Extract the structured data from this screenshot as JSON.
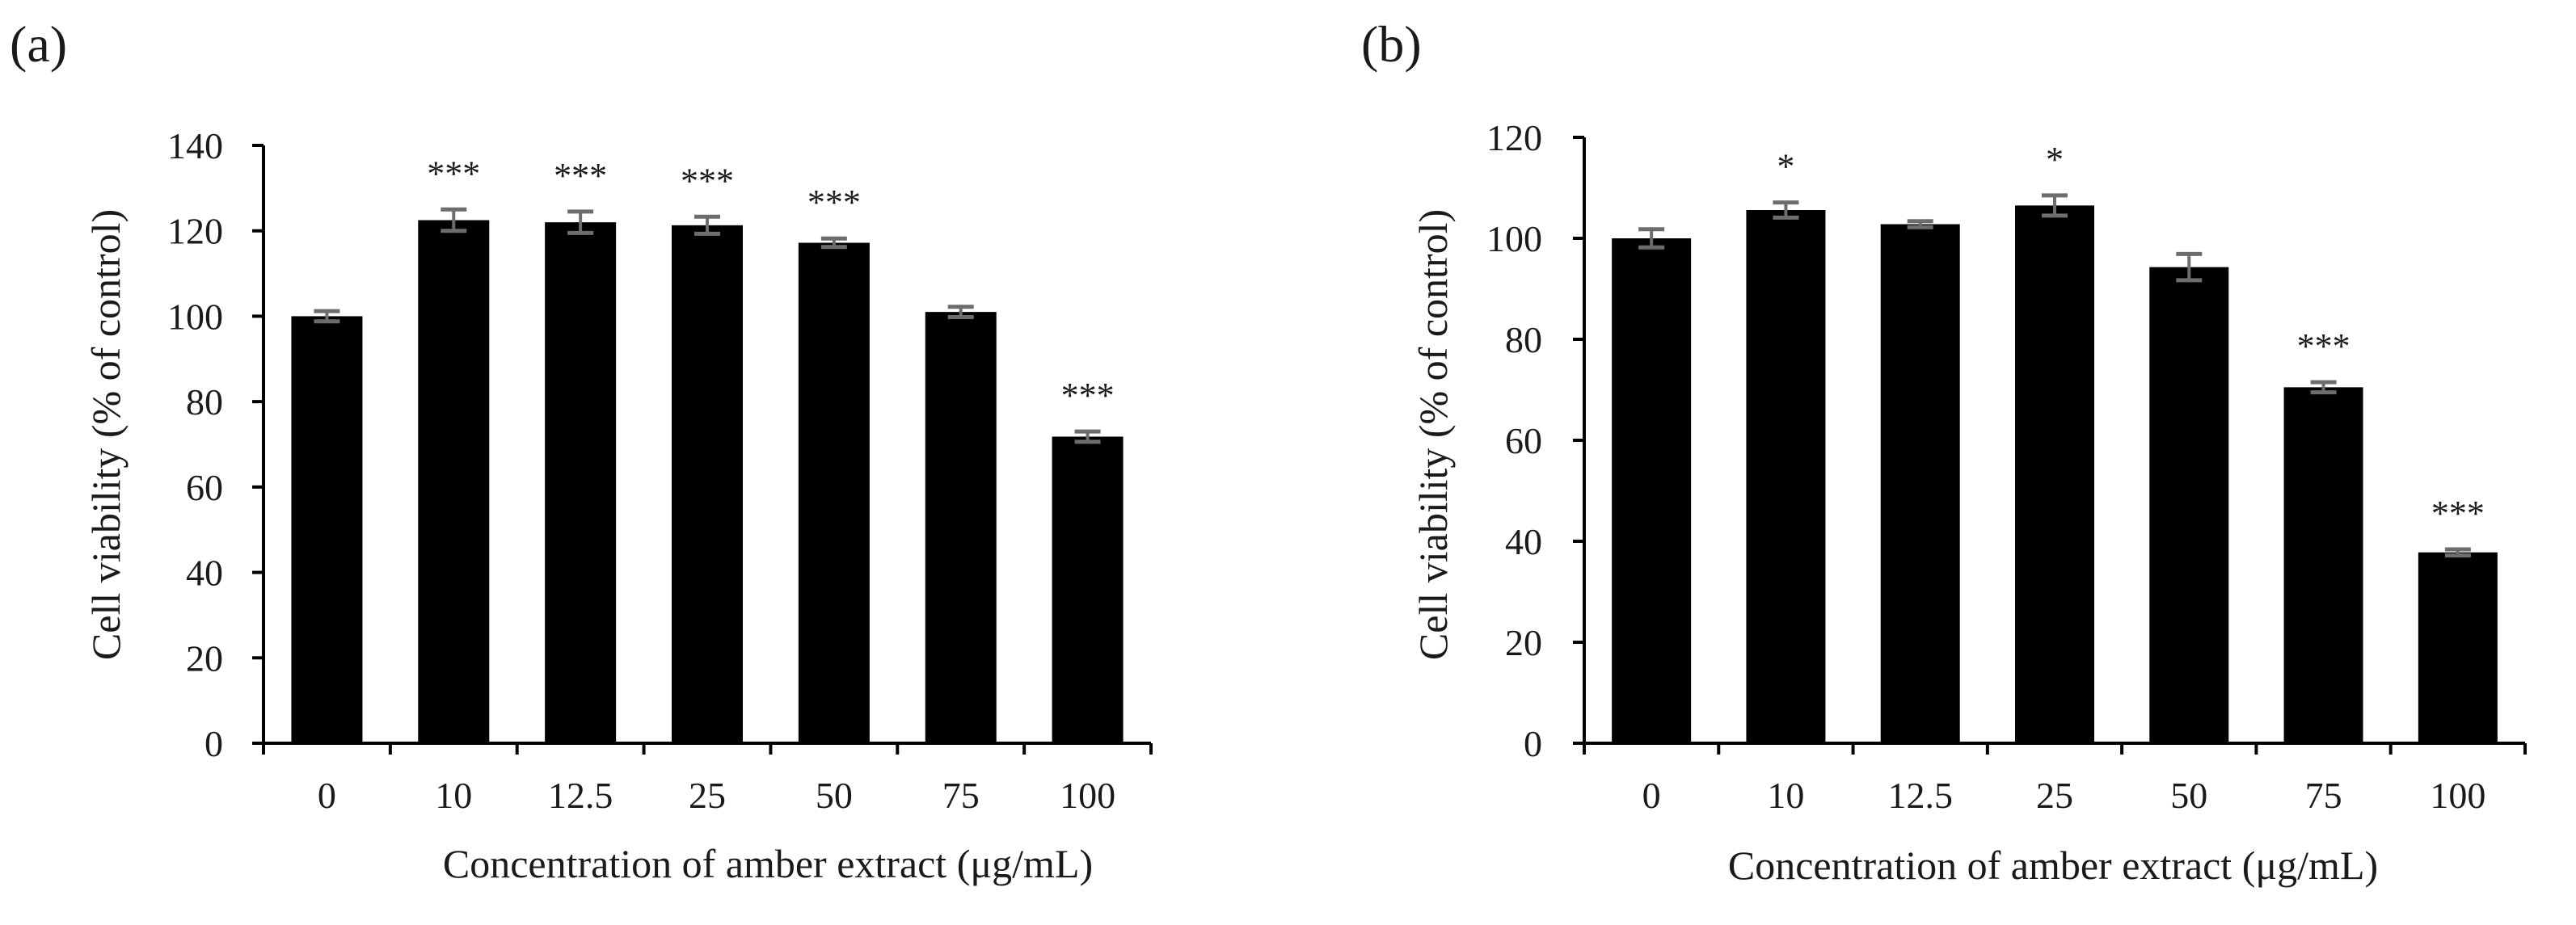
{
  "chart_data": [
    {
      "panel_label": "(a)",
      "type": "bar",
      "categories": [
        "0",
        "10",
        "12.5",
        "25",
        "50",
        "75",
        "100"
      ],
      "values": [
        100,
        122.5,
        122,
        121.3,
        117.2,
        101,
        71.8
      ],
      "errors": [
        1.2,
        2.5,
        2.5,
        2.0,
        1.0,
        1.2,
        1.2
      ],
      "significance": [
        "",
        "***",
        "***",
        "***",
        "***",
        "",
        "***"
      ],
      "xlabel": "Concentration of amber extract (μg/mL)",
      "ylabel": "Cell viability (% of control)",
      "ylim": [
        0,
        140
      ],
      "yticks": [
        0,
        20,
        40,
        60,
        80,
        100,
        120,
        140
      ],
      "grid": false,
      "bar_color": "#000000",
      "error_color": "#6d6d6d"
    },
    {
      "panel_label": "(b)",
      "type": "bar",
      "categories": [
        "0",
        "10",
        "12.5",
        "25",
        "50",
        "75",
        "100"
      ],
      "values": [
        100,
        105.6,
        102.8,
        106.5,
        94.3,
        70.5,
        37.8
      ],
      "errors": [
        1.8,
        1.5,
        0.6,
        2.0,
        2.6,
        1.0,
        0.6
      ],
      "significance": [
        "",
        "*",
        "",
        "*",
        "",
        "***",
        "***"
      ],
      "xlabel": "Concentration of amber extract (μg/mL)",
      "ylabel": "Cell viability (% of control)",
      "ylim": [
        0,
        120
      ],
      "yticks": [
        0,
        20,
        40,
        60,
        80,
        100,
        120
      ],
      "grid": false,
      "bar_color": "#000000",
      "error_color": "#6d6d6d"
    }
  ]
}
